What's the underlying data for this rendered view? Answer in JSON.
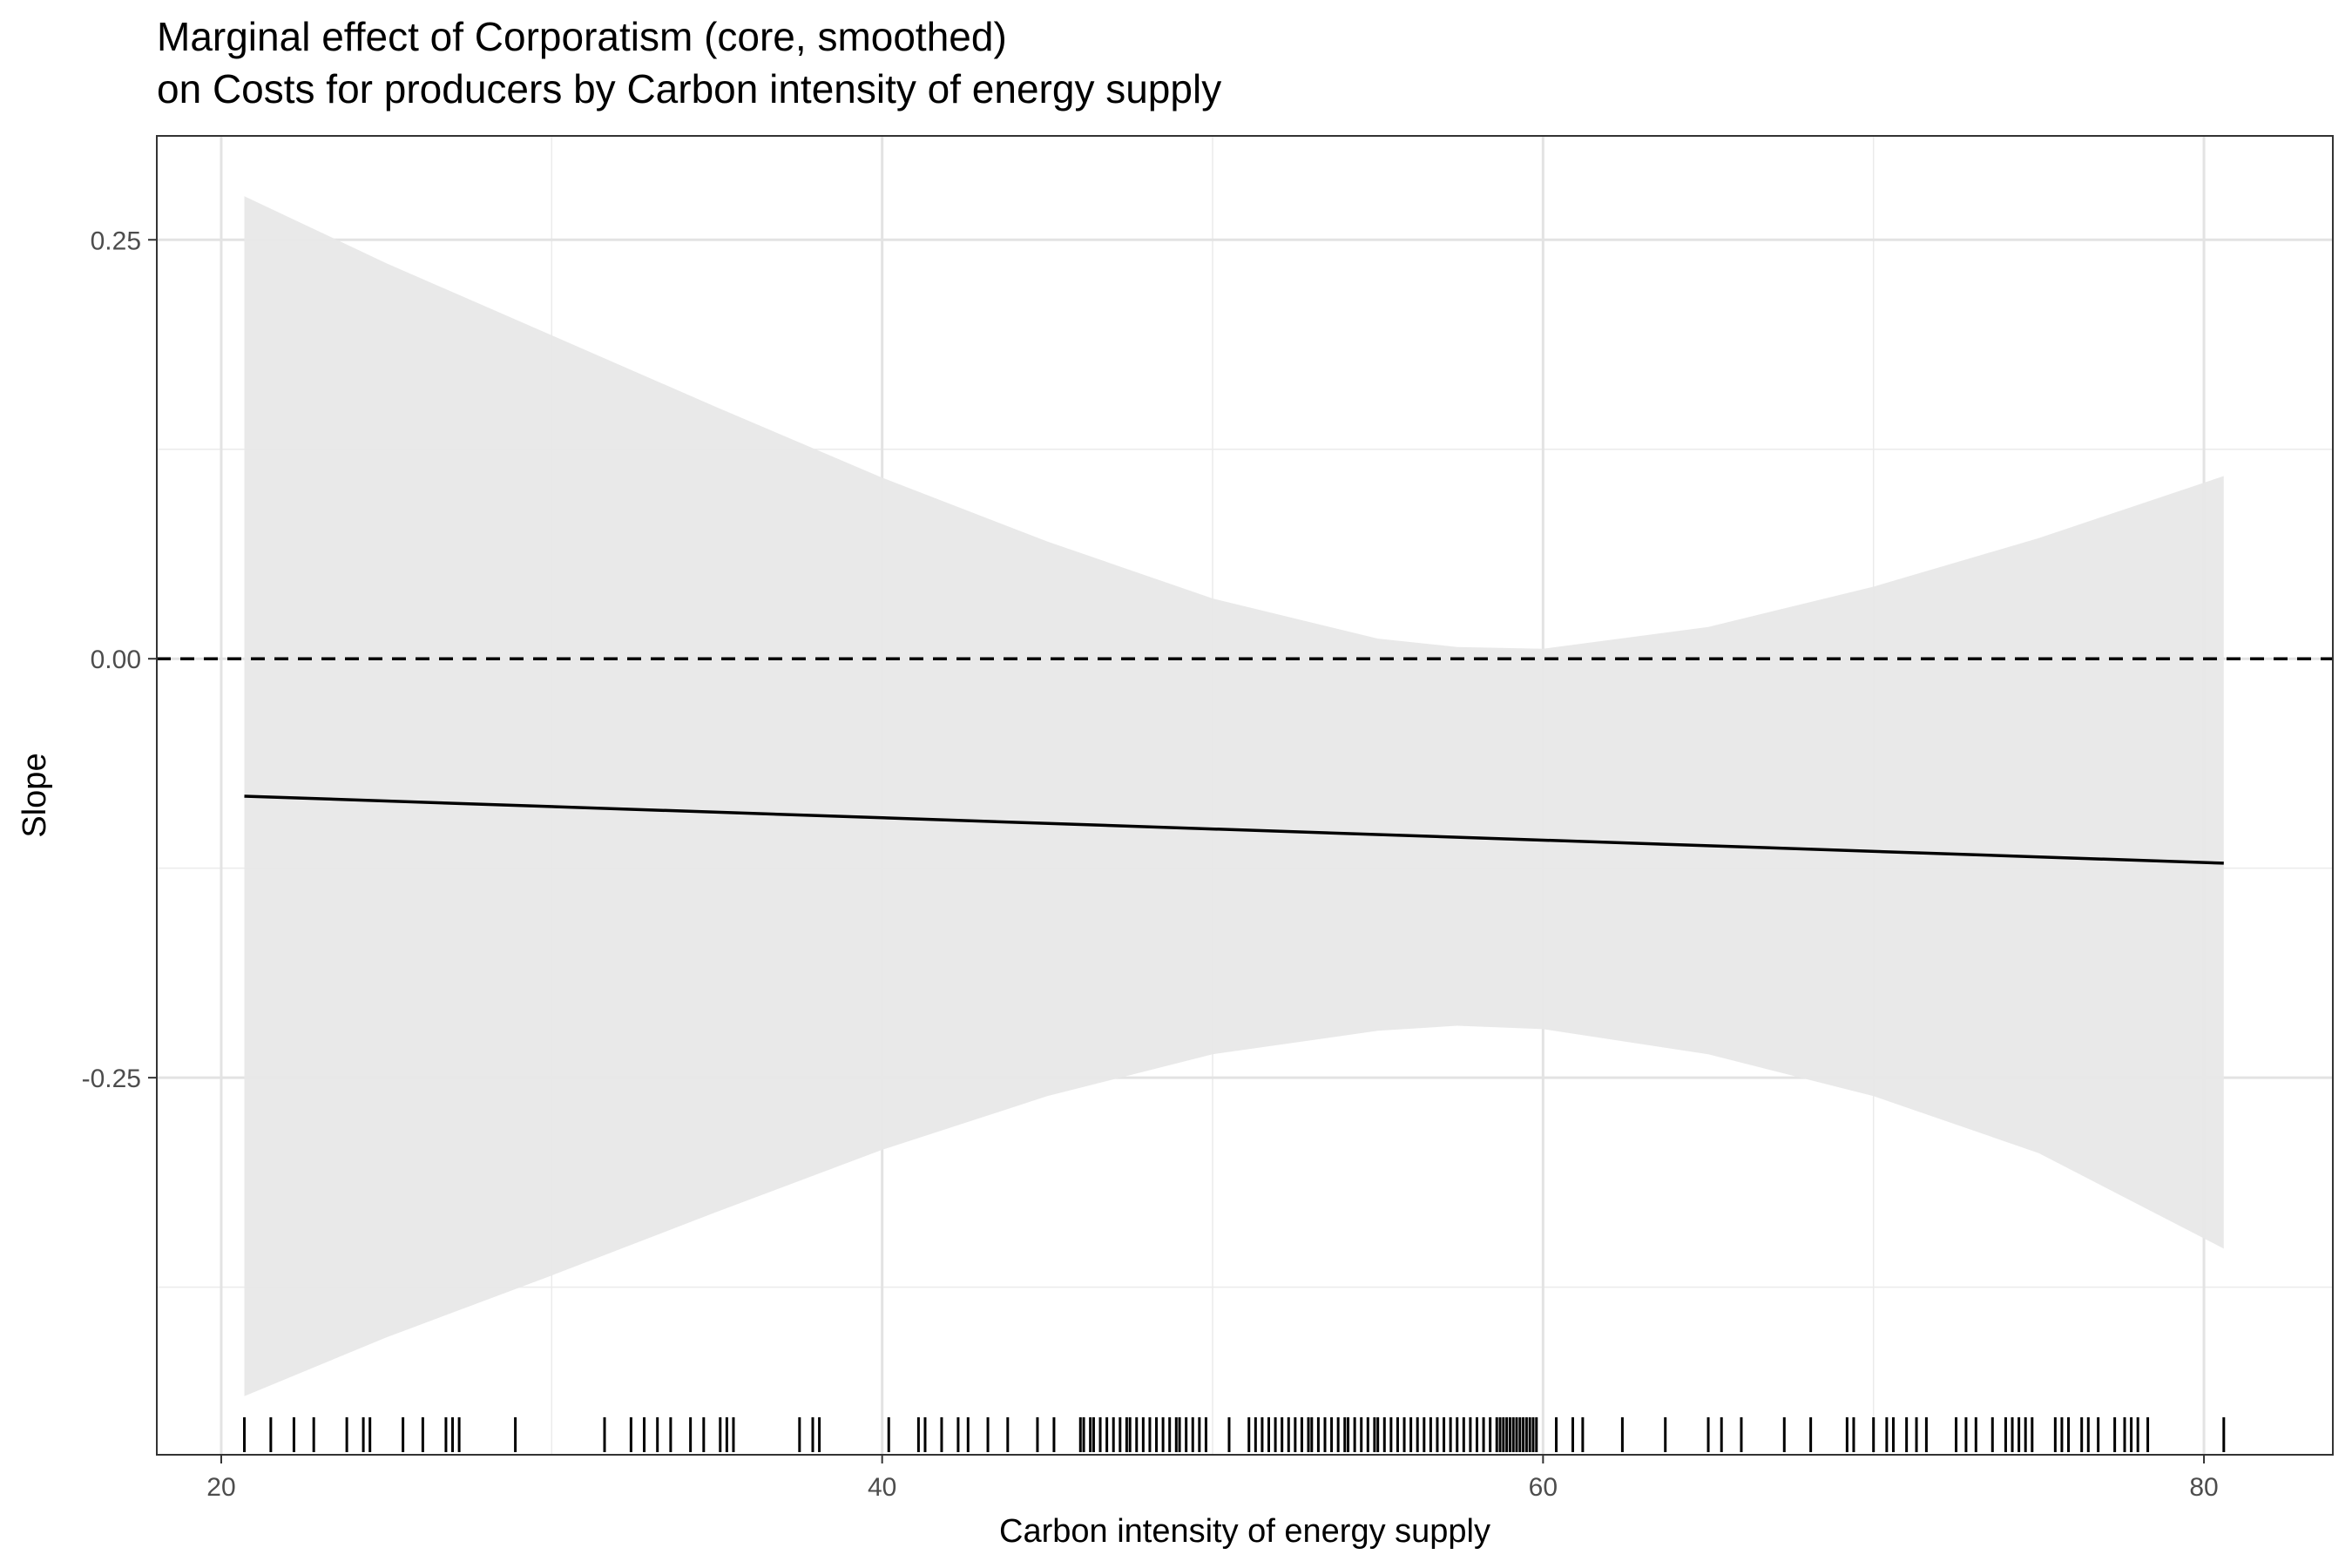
{
  "chart_data": {
    "type": "line",
    "title_line1": "Marginal effect of Corporatism (core, smoothed)",
    "title_line2": "on Costs for producers by Carbon intensity of energy supply",
    "xlabel": "Carbon intensity of energy supply",
    "ylabel": "Slope",
    "xlim": [
      18.05,
      83.9
    ],
    "ylim": [
      -0.475,
      0.312
    ],
    "x_ticks": [
      20,
      40,
      60,
      80
    ],
    "x_tick_labels": [
      "20",
      "40",
      "60",
      "80"
    ],
    "y_ticks": [
      -0.25,
      0.0,
      0.25
    ],
    "y_tick_labels": [
      "-0.25",
      "0.00",
      "0.25"
    ],
    "x_minor_ticks": [
      30,
      50,
      70
    ],
    "y_minor_ticks": [
      -0.375,
      -0.125,
      0.125
    ],
    "grid": true,
    "reference_line": {
      "y": 0,
      "style": "dashed"
    },
    "estimate": {
      "x": [
        20.7,
        80.6
      ],
      "y": [
        -0.082,
        -0.122
      ]
    },
    "confidence_band": {
      "x": [
        20.7,
        25,
        30,
        35,
        40,
        45,
        50,
        55,
        57.4,
        60,
        65,
        70,
        75,
        80.6
      ],
      "lower": [
        -0.44,
        -0.405,
        -0.368,
        -0.33,
        -0.293,
        -0.261,
        -0.236,
        -0.222,
        -0.219,
        -0.221,
        -0.236,
        -0.261,
        -0.295,
        -0.352
      ],
      "upper": [
        0.276,
        0.236,
        0.193,
        0.15,
        0.108,
        0.07,
        0.036,
        0.012,
        0.007,
        0.006,
        0.019,
        0.043,
        0.072,
        0.109
      ]
    },
    "rug_x": [
      20.7,
      21.5,
      22.2,
      22.8,
      23.8,
      24.3,
      24.5,
      25.5,
      26.1,
      26.8,
      27.0,
      27.2,
      28.9,
      31.6,
      32.4,
      32.8,
      33.2,
      33.6,
      34.2,
      34.6,
      35.1,
      35.3,
      35.5,
      37.5,
      37.9,
      38.1,
      40.2,
      41.1,
      41.3,
      41.8,
      42.3,
      42.6,
      43.2,
      43.8,
      44.7,
      45.2,
      46.0,
      46.1,
      46.3,
      46.4,
      46.6,
      46.8,
      47.0,
      47.2,
      47.4,
      47.5,
      47.7,
      47.9,
      48.1,
      48.3,
      48.5,
      48.7,
      48.9,
      49.0,
      49.2,
      49.4,
      49.6,
      49.8,
      50.5,
      51.1,
      51.3,
      51.5,
      51.7,
      51.9,
      52.1,
      52.3,
      52.5,
      52.7,
      52.9,
      53.0,
      53.2,
      53.4,
      53.6,
      53.8,
      54.0,
      54.1,
      54.3,
      54.5,
      54.7,
      54.9,
      55.0,
      55.2,
      55.4,
      55.6,
      55.8,
      56.0,
      56.2,
      56.4,
      56.6,
      56.8,
      57.0,
      57.2,
      57.4,
      57.6,
      57.8,
      58.0,
      58.2,
      58.4,
      58.6,
      58.7,
      58.8,
      58.9,
      59.0,
      59.1,
      59.2,
      59.3,
      59.4,
      59.5,
      59.6,
      59.7,
      59.8,
      60.4,
      60.9,
      61.2,
      62.4,
      63.7,
      65.0,
      65.4,
      66.0,
      67.3,
      68.1,
      69.2,
      69.4,
      70.0,
      70.4,
      70.6,
      71.0,
      71.3,
      71.6,
      72.5,
      72.8,
      73.1,
      73.6,
      74.0,
      74.2,
      74.4,
      74.6,
      74.8,
      75.5,
      75.7,
      75.9,
      76.3,
      76.5,
      76.8,
      77.3,
      77.6,
      77.8,
      78.0,
      78.3,
      80.6
    ]
  }
}
